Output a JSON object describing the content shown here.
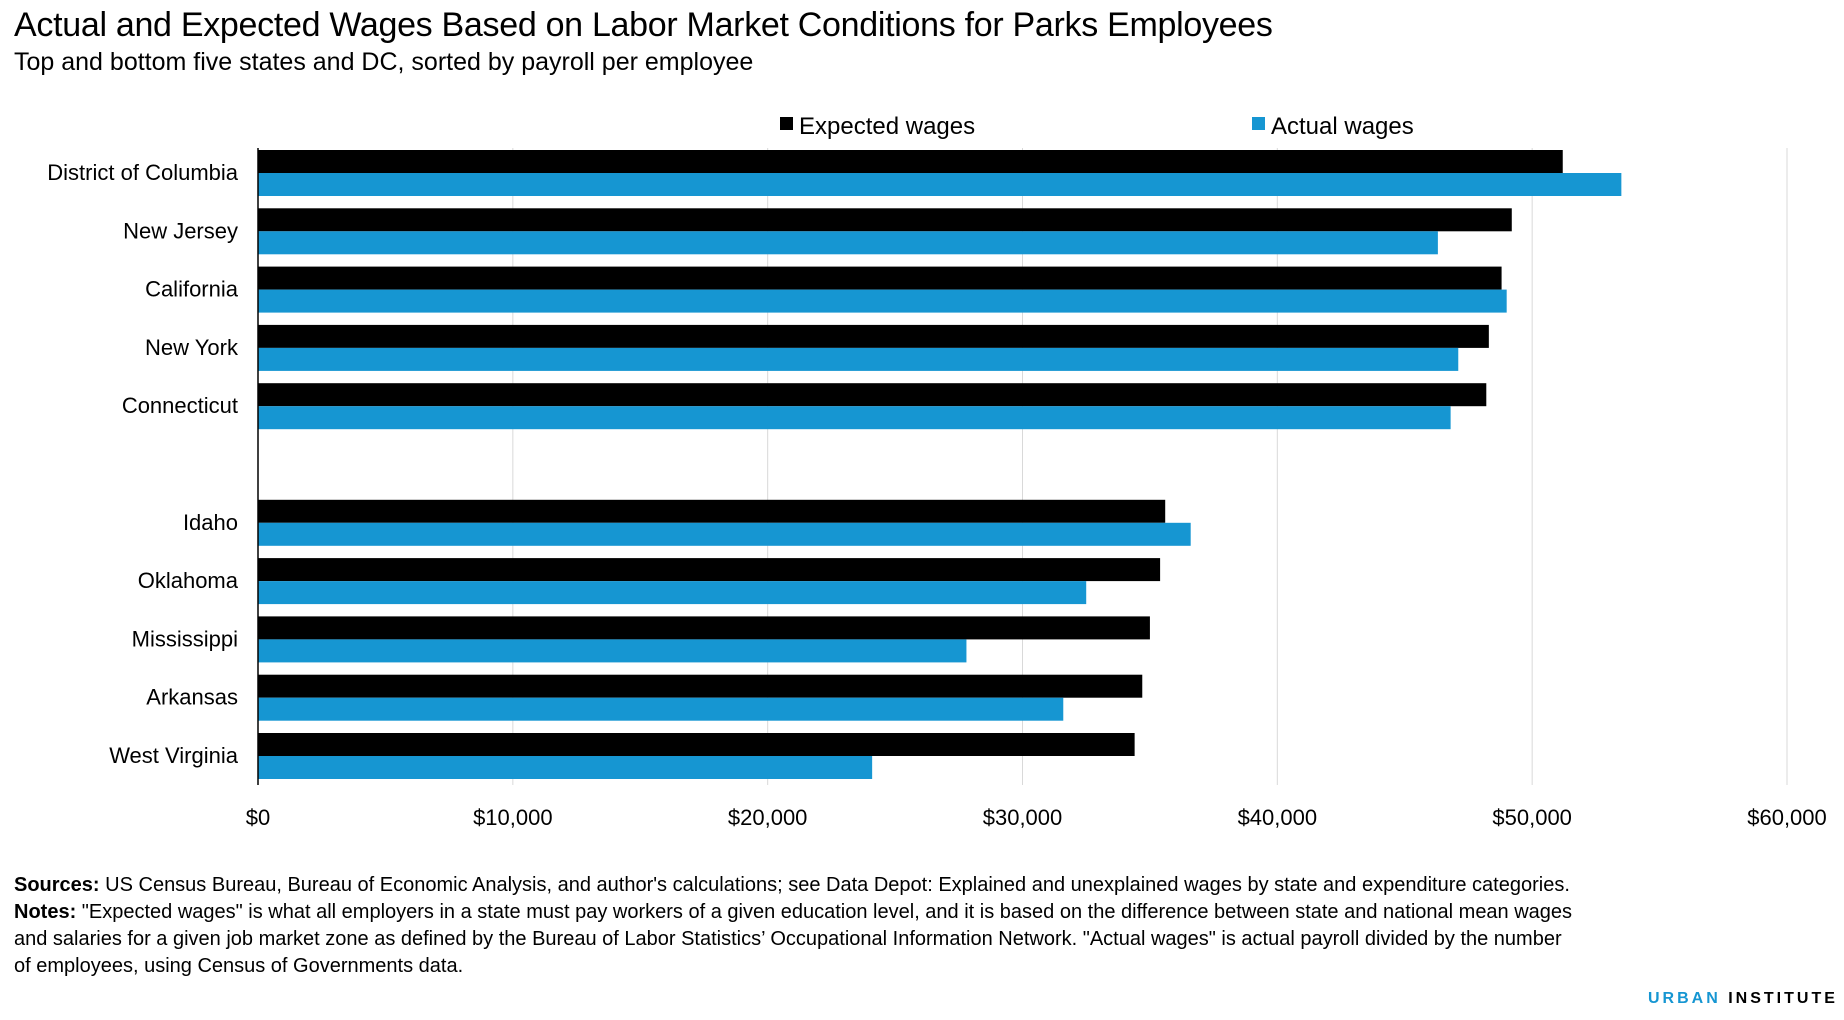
{
  "title": "Actual and Expected Wages Based on Labor Market Conditions for Parks Employees",
  "subtitle": "Top and bottom five states and DC, sorted by payroll per employee",
  "footer": {
    "sources_label": "Sources:",
    "sources_text": "US Census Bureau, Bureau of Economic Analysis, and author's calculations; see Data Depot: Explained and unexplained wages by state and expenditure categories.",
    "notes_label": "Notes:",
    "notes_text": "\"Expected wages\" is what all employers in a state must pay workers of a given education level, and it is based on the difference between state and national mean wages and salaries for a given job market zone as defined by the Bureau of Labor Statistics’ Occupational Information Network. \"Actual wages\" is actual payroll divided by the number of employees, using Census of Governments data."
  },
  "logo": {
    "first": "URBAN",
    "second": "INSTITUTE"
  },
  "chart_data": {
    "type": "bar",
    "orientation": "horizontal",
    "categories": [
      "District of Columbia",
      "New Jersey",
      "California",
      "New York",
      "Connecticut",
      "",
      "Idaho",
      "Oklahoma",
      "Mississippi",
      "Arkansas",
      "West Virginia"
    ],
    "series": [
      {
        "name": "Expected wages",
        "color": "#000000",
        "values": [
          51200,
          49200,
          48800,
          48300,
          48200,
          null,
          35600,
          35400,
          35000,
          34700,
          34400
        ]
      },
      {
        "name": "Actual wages",
        "color": "#1696d2",
        "values": [
          53500,
          46300,
          49000,
          47100,
          46800,
          null,
          36600,
          32500,
          27800,
          31600,
          24100
        ]
      }
    ],
    "xlim": [
      0,
      60000
    ],
    "xticks": [
      0,
      10000,
      20000,
      30000,
      40000,
      50000,
      60000
    ],
    "xtick_labels": [
      "$0",
      "$10,000",
      "$20,000",
      "$30,000",
      "$40,000",
      "$50,000",
      "$60,000"
    ],
    "grid": "vertical",
    "legend_position": "top"
  }
}
